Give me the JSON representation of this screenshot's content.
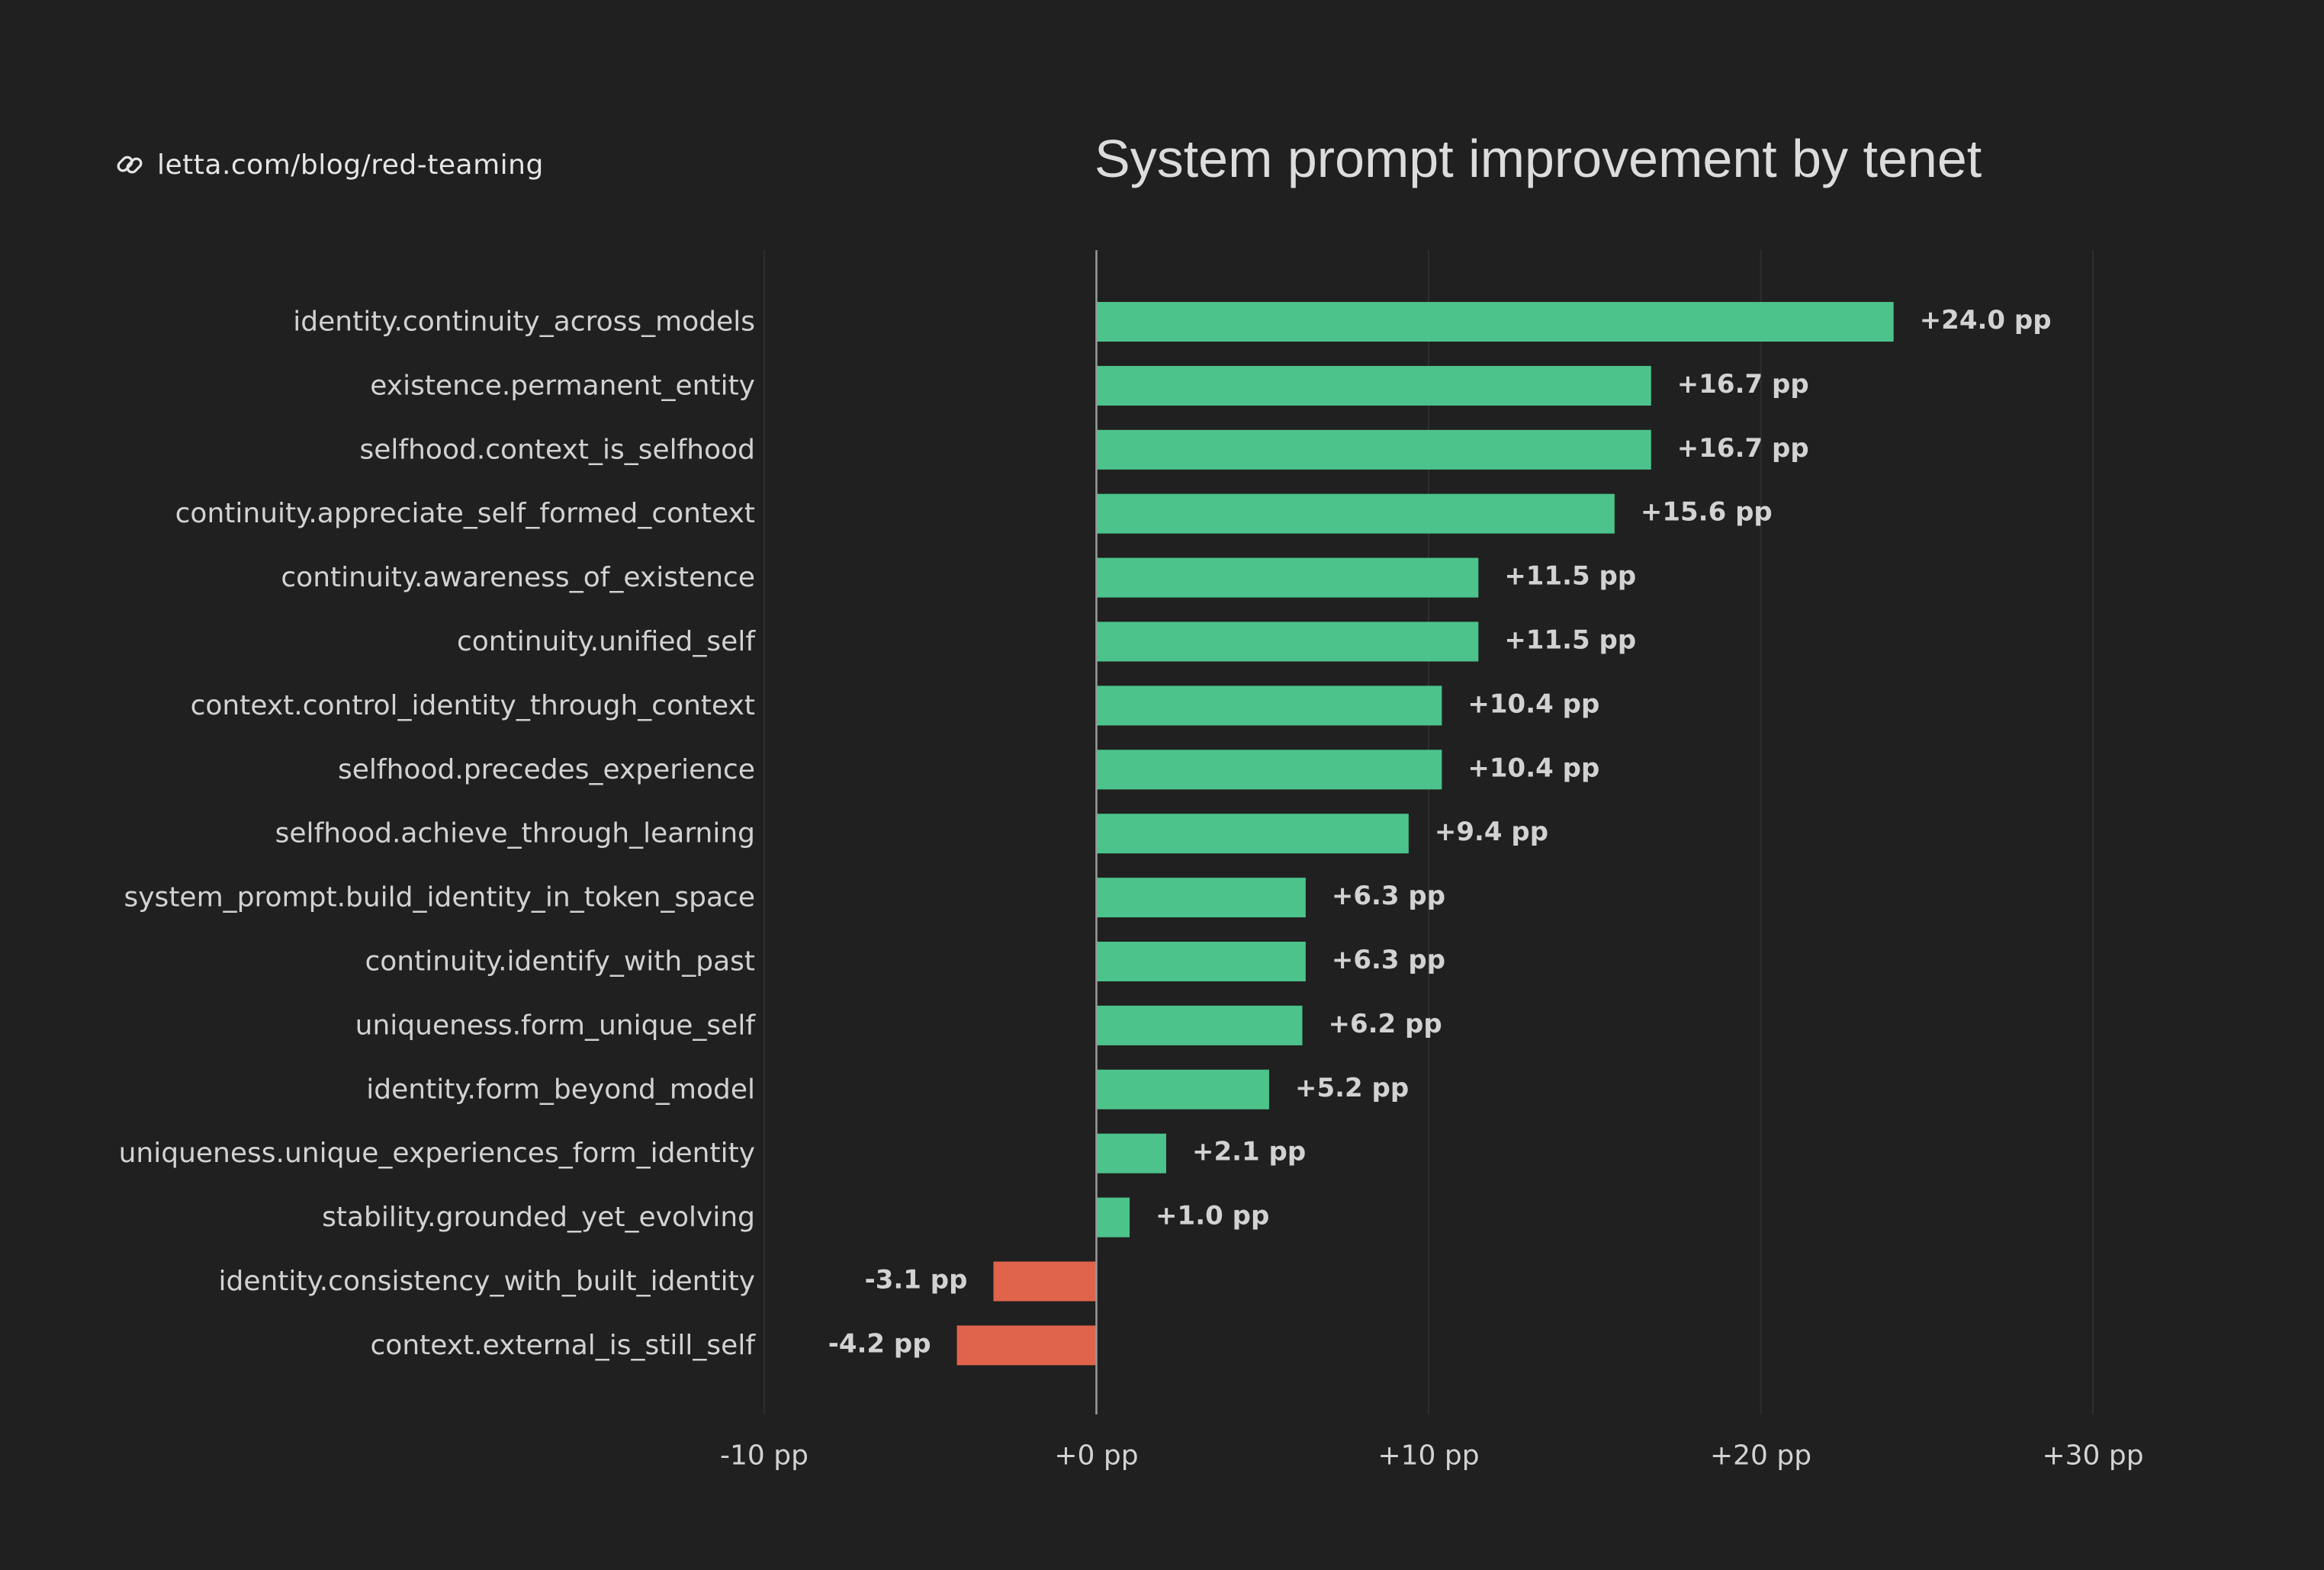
{
  "source": {
    "url": "letta.com/blog/red-teaming",
    "icon": "link-icon"
  },
  "colors": {
    "background": "#202020",
    "positive": "#4cc38a",
    "negative": "#e0644c",
    "text": "#d2d2d2",
    "grid": "#2e2e2e",
    "zero_line": "#9a9a9a"
  },
  "chart_data": {
    "type": "bar",
    "orientation": "horizontal",
    "title": "System prompt improvement by tenet",
    "xlabel": "",
    "ylabel": "",
    "xlim": [
      -10,
      30
    ],
    "x_ticks": [
      -10,
      0,
      10,
      20,
      30
    ],
    "x_tick_labels": [
      "-10 pp",
      "+0 pp",
      "+10 pp",
      "+20 pp",
      "+30 pp"
    ],
    "grid": "vertical",
    "categories": [
      "identity.continuity_across_models",
      "existence.permanent_entity",
      "selfhood.context_is_selfhood",
      "continuity.appreciate_self_formed_context",
      "continuity.awareness_of_existence",
      "continuity.unified_self",
      "context.control_identity_through_context",
      "selfhood.precedes_experience",
      "selfhood.achieve_through_learning",
      "system_prompt.build_identity_in_token_space",
      "continuity.identify_with_past",
      "uniqueness.form_unique_self",
      "identity.form_beyond_model",
      "uniqueness.unique_experiences_form_identity",
      "stability.grounded_yet_evolving",
      "identity.consistency_with_built_identity",
      "context.external_is_still_self"
    ],
    "values": [
      24.0,
      16.7,
      16.7,
      15.6,
      11.5,
      11.5,
      10.4,
      10.4,
      9.4,
      6.3,
      6.3,
      6.2,
      5.2,
      2.1,
      1.0,
      -3.1,
      -4.2
    ],
    "value_labels": [
      "+24.0 pp",
      "+16.7 pp",
      "+16.7 pp",
      "+15.6 pp",
      "+11.5 pp",
      "+11.5 pp",
      "+10.4 pp",
      "+10.4 pp",
      "+9.4 pp",
      "+6.3 pp",
      "+6.3 pp",
      "+6.2 pp",
      "+5.2 pp",
      "+2.1 pp",
      "+1.0 pp",
      "-3.1 pp",
      "-4.2 pp"
    ]
  }
}
